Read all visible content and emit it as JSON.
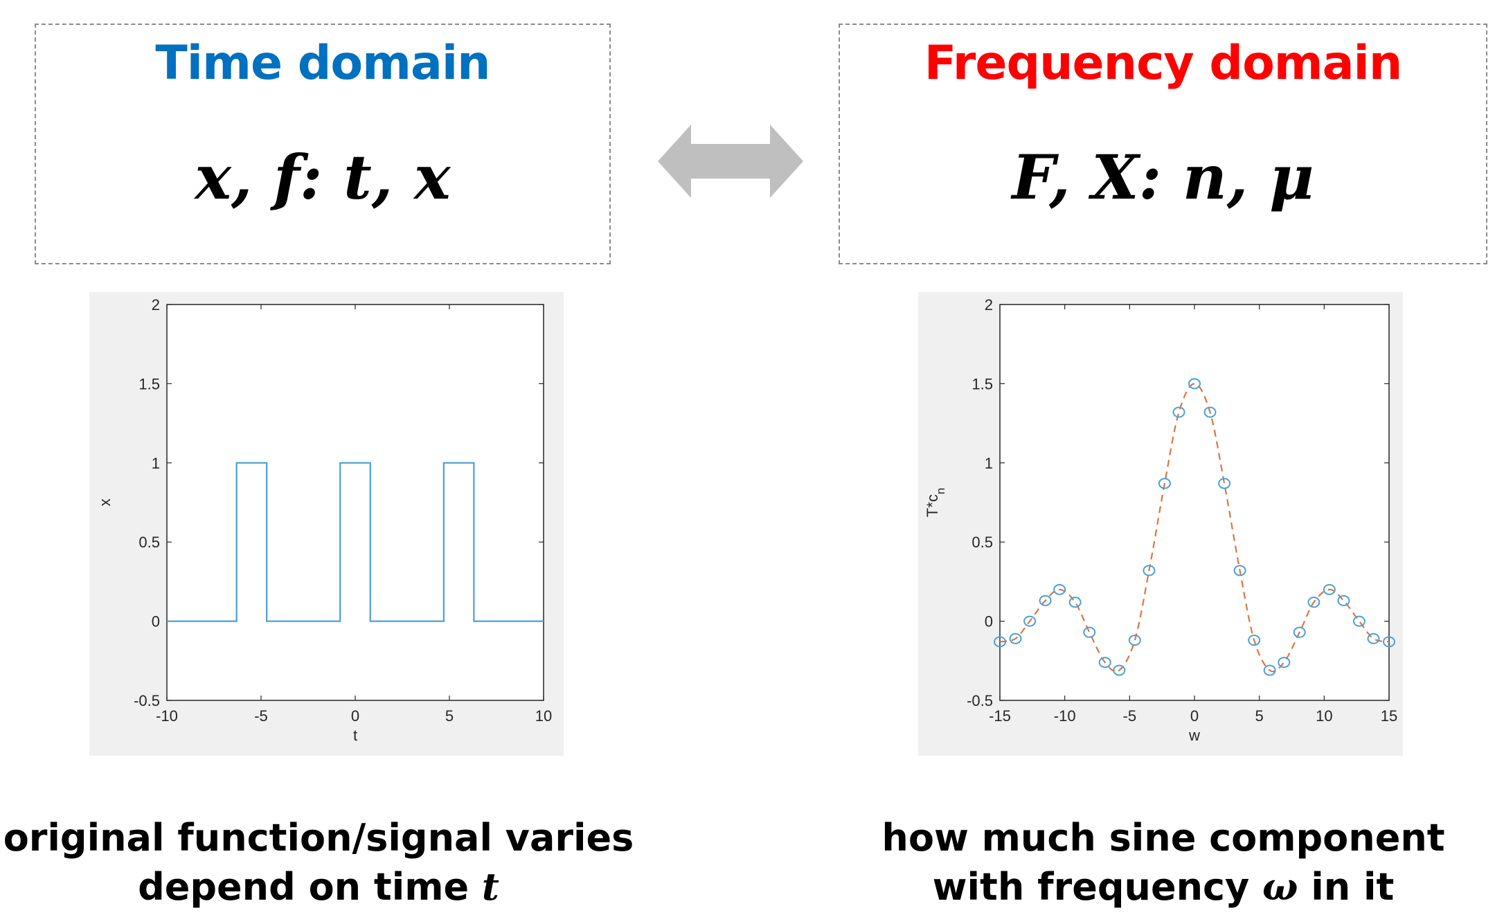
{
  "time_box": {
    "title": "Time domain",
    "formula": "x, f: t, x",
    "title_color": "#0070C0"
  },
  "freq_box": {
    "title": "Frequency domain",
    "formula": "F, X: n, μ",
    "title_color": "#FF0000"
  },
  "arrow": {
    "icon": "double-headed-arrow-icon",
    "color": "#BFBFBF"
  },
  "time_caption": {
    "line1": "original function/signal varies",
    "line2_prefix": "depend on time ",
    "line2_var": "t"
  },
  "freq_caption": {
    "line1": "how much sine component",
    "line2_prefix": "with frequency ",
    "line2_var": "ω",
    "line2_suffix": " in it"
  },
  "chart_data": [
    {
      "type": "line",
      "xlabel": "t",
      "ylabel": "x",
      "xlim": [
        -10,
        10
      ],
      "ylim": [
        -0.5,
        2
      ],
      "xticks": [
        -10,
        -5,
        0,
        5,
        10
      ],
      "yticks": [
        -0.5,
        0,
        0.5,
        1,
        1.5,
        2
      ],
      "xtick_labels": [
        "-10",
        "-5",
        "0",
        "5",
        "10"
      ],
      "ytick_labels": [
        "-0.5",
        "0",
        "0.5",
        "1",
        "1.5",
        "2"
      ],
      "series": [
        {
          "color": "#4A9FD8",
          "x": [
            -10,
            -6.3,
            -6.3,
            -4.7,
            -4.7,
            -0.8,
            -0.8,
            0.8,
            0.8,
            4.7,
            4.7,
            6.3,
            6.3,
            10
          ],
          "y": [
            0,
            0,
            1,
            1,
            0,
            0,
            1,
            1,
            0,
            0,
            1,
            1,
            0,
            0
          ]
        }
      ]
    },
    {
      "type": "scatter",
      "xlabel": "w",
      "ylabel": "T*c_n",
      "xlim": [
        -15,
        15
      ],
      "ylim": [
        -0.5,
        2
      ],
      "xticks": [
        -15,
        -10,
        -5,
        0,
        5,
        10,
        15
      ],
      "yticks": [
        -0.5,
        0,
        0.5,
        1,
        1.5,
        2
      ],
      "xtick_labels": [
        "-15",
        "-10",
        "-5",
        "0",
        "5",
        "10",
        "15"
      ],
      "ytick_labels": [
        "-0.5",
        "0",
        "0.5",
        "1",
        "1.5",
        "2"
      ],
      "series": [
        {
          "style": "circles",
          "color": "#4A9FD8",
          "x": [
            -15,
            -13.8,
            -12.7,
            -11.5,
            -10.4,
            -9.2,
            -8.1,
            -6.9,
            -5.8,
            -4.6,
            -3.5,
            -2.3,
            -1.2,
            0,
            1.2,
            2.3,
            3.5,
            4.6,
            5.8,
            6.9,
            8.1,
            9.2,
            10.4,
            11.5,
            12.7,
            13.8,
            15
          ],
          "y": [
            -0.13,
            -0.11,
            0.0,
            0.13,
            0.2,
            0.12,
            -0.07,
            -0.26,
            -0.31,
            -0.12,
            0.32,
            0.87,
            1.32,
            1.5,
            1.32,
            0.87,
            0.32,
            -0.12,
            -0.31,
            -0.26,
            -0.07,
            0.12,
            0.2,
            0.13,
            0.0,
            -0.11,
            -0.13
          ]
        },
        {
          "style": "dashed-line",
          "color": "#D9763E"
        }
      ]
    }
  ]
}
